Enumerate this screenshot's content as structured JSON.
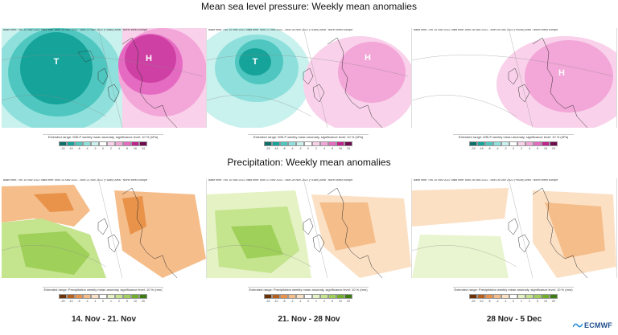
{
  "titles": {
    "mslp": "Mean sea level pressure: Weekly mean anomalies",
    "precip": "Precipitation: Weekly mean anomalies"
  },
  "panel_headers": {
    "mslp": [
      "Base time: Thu 10 Nov 2022 Valid time: Mon 14 Nov 2022 - Mon 21 Nov 2022 (+168h) Area : North West Europe",
      "Base time: Thu 10 Nov 2022 Valid time: Mon 21 Nov 2022 - Mon 28 Nov 2022 (+336h) Area : North West Europe",
      "Base time: Thu 10 Nov 2022 Valid time: Mon 28 Nov 2022 - Mon 05 Dec 2022 (+504h) Area : North West Europe"
    ],
    "precip": [
      "Base time: Thu 10 Nov 2022 Valid time: Mon 14 Nov 2022 - Mon 21 Nov 2022 (+168h) Area : North West Europe",
      "Base time: Thu 10 Nov 2022 Valid time: Mon 21 Nov 2022 - Mon 28 Nov 2022 (+336h) Area : North West Europe",
      "Base time: Thu 10 Nov 2022 Valid time: Mon 28 Nov 2022 - Mon 05 Dec 2022 (+504h) Area : North West Europe"
    ]
  },
  "pressure_labels": {
    "low": "T",
    "high": "H"
  },
  "legends": {
    "mslp": {
      "caption": "Extended range: MSLP weekly mean anomaly, significance level: 10 % (hPa)",
      "ticks": [
        "-24",
        "-16",
        "-8",
        "-4",
        "-2",
        "0",
        "2",
        "4",
        "8",
        "16",
        "24"
      ],
      "colors": [
        "#0e6f6a",
        "#16a39a",
        "#4fc7c0",
        "#8fe0dc",
        "#c9f1ee",
        "#ffffff",
        "#f9d1ea",
        "#f3a6d8",
        "#e56bc2",
        "#c0238f",
        "#6e0b4e"
      ]
    },
    "precip": {
      "caption": "Extended range: Precipitation weekly mean anomaly, significance level: 10 % (mm)",
      "ticks": [
        "-20",
        "-10",
        "-5",
        "-2",
        "-1",
        "0",
        "1",
        "2",
        "5",
        "10",
        "20"
      ],
      "colors": [
        "#6b3206",
        "#b5601d",
        "#e8924a",
        "#f5bd8a",
        "#fbe0c4",
        "#ffffff",
        "#e4f2c4",
        "#c4e48e",
        "#9fd05a",
        "#6fae28",
        "#3c7a12"
      ]
    }
  },
  "periods": [
    "14. Nov - 21. Nov",
    "21. Nov - 28 Nov",
    "28 Nov - 5 Dec"
  ],
  "logo": {
    "text": "ECMWF"
  }
}
